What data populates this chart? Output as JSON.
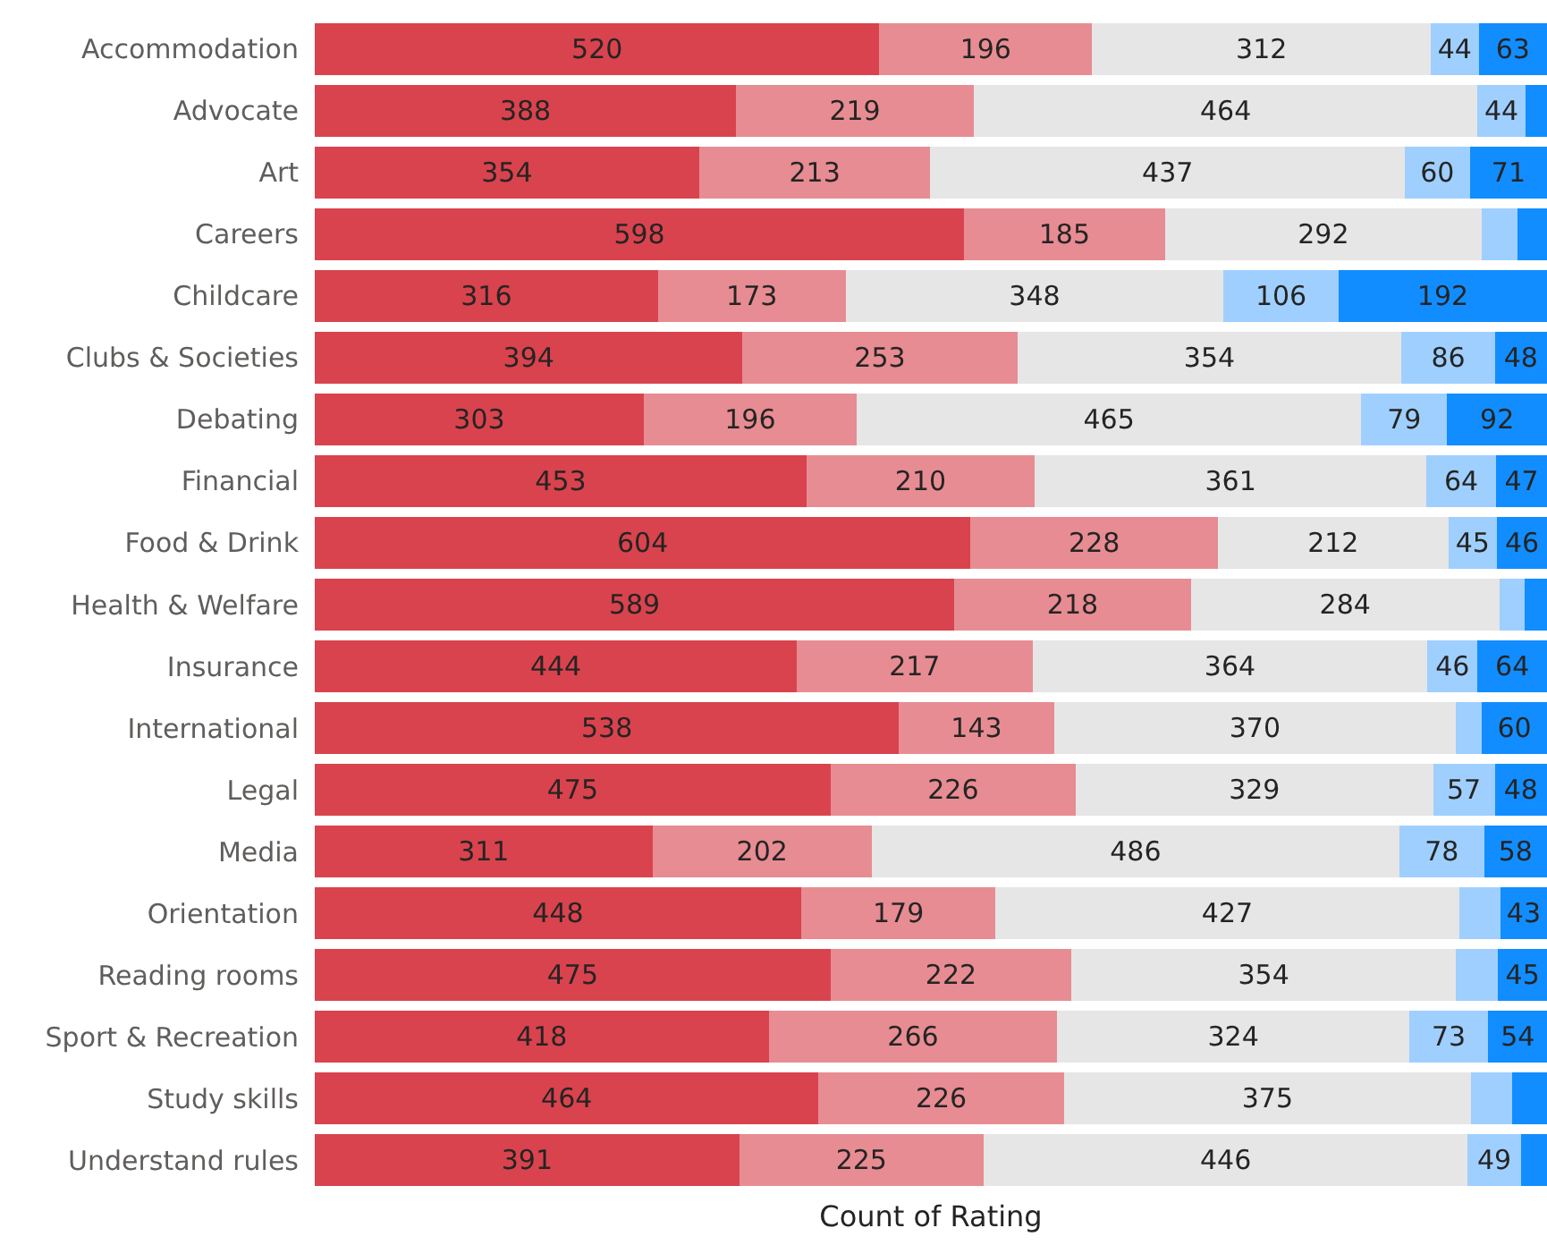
{
  "chart_data": {
    "type": "bar",
    "orientation": "horizontal",
    "stacked": true,
    "xlabel": "Count of Rating",
    "tick_labels": "y",
    "xlim": [
      0,
      1135
    ],
    "categories": [
      "Accommodation",
      "Advocate",
      "Art",
      "Careers",
      "Childcare",
      "Clubs & Societies",
      "Debating",
      "Financial",
      "Food & Drink",
      "Health & Welfare",
      "Insurance",
      "International",
      "Legal",
      "Media",
      "Orientation",
      "Reading rooms",
      "Sport & Recreation",
      "Study skills",
      "Understand rules"
    ],
    "series": [
      {
        "color": "#d9434e",
        "values": [
          520,
          388,
          354,
          598,
          316,
          394,
          303,
          453,
          604,
          589,
          444,
          538,
          475,
          311,
          448,
          475,
          418,
          464,
          391
        ],
        "value_labels": [
          "520",
          "388",
          "354",
          "598",
          "316",
          "394",
          "303",
          "453",
          "604",
          "589",
          "444",
          "538",
          "475",
          "311",
          "448",
          "475",
          "418",
          "464",
          "391"
        ]
      },
      {
        "color": "#e78c93",
        "values": [
          196,
          219,
          213,
          185,
          173,
          253,
          196,
          210,
          228,
          218,
          217,
          143,
          226,
          202,
          179,
          222,
          266,
          226,
          225
        ],
        "value_labels": [
          "196",
          "219",
          "213",
          "185",
          "173",
          "253",
          "196",
          "210",
          "228",
          "218",
          "217",
          "143",
          "226",
          "202",
          "179",
          "222",
          "266",
          "226",
          "225"
        ]
      },
      {
        "color": "#e6e6e6",
        "values": [
          312,
          464,
          437,
          292,
          348,
          354,
          465,
          361,
          212,
          284,
          364,
          370,
          329,
          486,
          427,
          354,
          324,
          375,
          446
        ],
        "value_labels": [
          "312",
          "464",
          "437",
          "292",
          "348",
          "354",
          "465",
          "361",
          "212",
          "284",
          "364",
          "370",
          "329",
          "486",
          "427",
          "354",
          "324",
          "375",
          "446"
        ]
      },
      {
        "color": "#9fcfff",
        "values": [
          44,
          44,
          60,
          33,
          106,
          86,
          79,
          64,
          45,
          23,
          46,
          24,
          57,
          78,
          38,
          39,
          73,
          38,
          49
        ],
        "value_labels": [
          "44",
          "44",
          "60",
          null,
          "106",
          "86",
          "79",
          "64",
          "45",
          null,
          "46",
          null,
          "57",
          "78",
          null,
          null,
          "73",
          null,
          "49"
        ]
      },
      {
        "color": "#118dff",
        "values": [
          63,
          20,
          71,
          27,
          192,
          48,
          92,
          47,
          46,
          21,
          64,
          60,
          48,
          58,
          43,
          45,
          54,
          32,
          24
        ],
        "value_labels": [
          "63",
          null,
          "71",
          null,
          "192",
          "48",
          "92",
          "47",
          "46",
          null,
          "64",
          "60",
          "48",
          "58",
          "43",
          "45",
          "54",
          null,
          null
        ]
      }
    ]
  }
}
